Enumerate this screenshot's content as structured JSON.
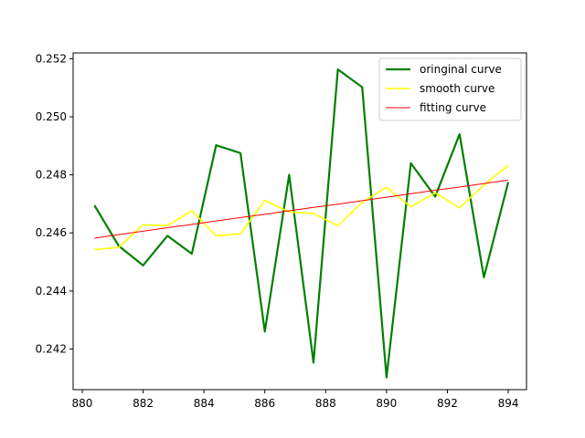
{
  "chart_data": {
    "type": "line",
    "title": "",
    "xlabel": "",
    "ylabel": "",
    "xlim": [
      879.7,
      894.6
    ],
    "ylim": [
      0.2406,
      0.2522
    ],
    "xticks": [
      880,
      882,
      884,
      886,
      888,
      890,
      892,
      894
    ],
    "yticks": [
      0.242,
      0.244,
      0.246,
      0.248,
      0.25,
      0.252
    ],
    "xtick_labels": [
      "880",
      "882",
      "884",
      "886",
      "888",
      "890",
      "892",
      "894"
    ],
    "ytick_labels": [
      "0.242",
      "0.244",
      "0.246",
      "0.248",
      "0.250",
      "0.252"
    ],
    "grid": false,
    "legend": "top-right",
    "x": [
      880.4,
      881.2,
      882.0,
      882.8,
      883.6,
      884.4,
      885.2,
      886.0,
      886.8,
      887.6,
      888.4,
      889.2,
      890.0,
      890.8,
      891.6,
      892.4,
      893.2,
      894.0
    ],
    "series": [
      {
        "name": "oringinal curve",
        "color": "#008000",
        "values": [
          0.24695,
          0.24555,
          0.24488,
          0.2459,
          0.24528,
          0.24902,
          0.24875,
          0.2426,
          0.248,
          0.24153,
          0.25163,
          0.25102,
          0.24102,
          0.2484,
          0.24725,
          0.2494,
          0.24447,
          0.24775
        ]
      },
      {
        "name": "smooth curve",
        "color": "#ffff00",
        "values": [
          0.24543,
          0.2455,
          0.24628,
          0.24625,
          0.24676,
          0.2459,
          0.24597,
          0.24712,
          0.24672,
          0.24667,
          0.24625,
          0.24705,
          0.24757,
          0.2469,
          0.24738,
          0.24686,
          0.24765,
          0.24833
        ]
      },
      {
        "name": "fitting curve",
        "color": "#ff0000",
        "values": [
          0.24582,
          0.24594,
          0.24606,
          0.24618,
          0.24629,
          0.24641,
          0.24653,
          0.24664,
          0.24676,
          0.24688,
          0.24699,
          0.24711,
          0.24723,
          0.24735,
          0.24747,
          0.24758,
          0.2477,
          0.24782
        ]
      }
    ]
  }
}
